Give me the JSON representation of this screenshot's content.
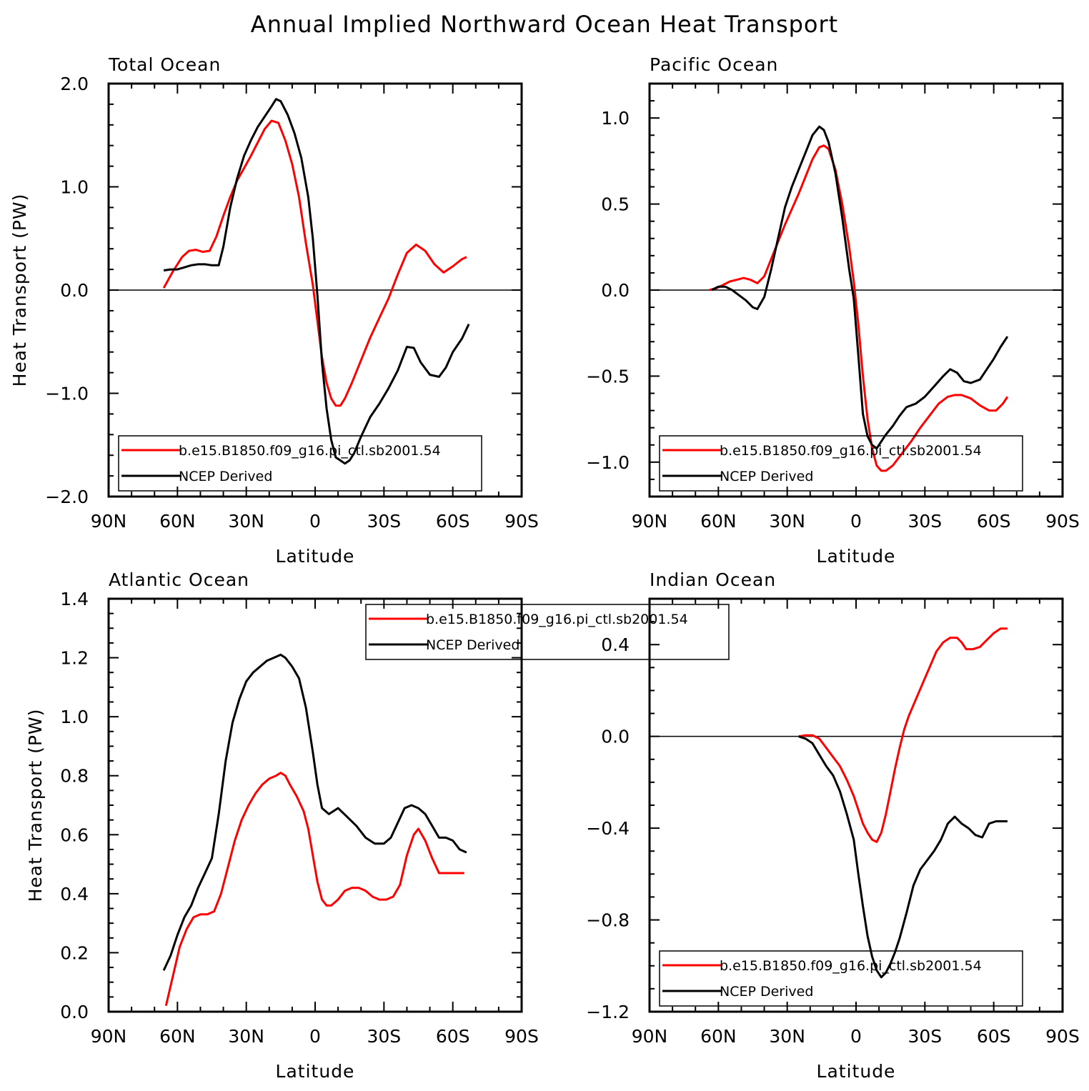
{
  "title": "Annual Implied Northward Ocean Heat Transport",
  "colors": {
    "model": "#ff0000",
    "obs": "#000000",
    "axis": "#000000"
  },
  "chart_data": [
    {
      "type": "line",
      "panel_title": "Total Ocean",
      "xlabel": "Latitude",
      "ylabel": "Heat Transport (PW)",
      "xlim": [
        90,
        -90
      ],
      "ylim": [
        -2.0,
        2.0
      ],
      "xticks": [
        90,
        60,
        30,
        0,
        -30,
        -60,
        -90
      ],
      "xtick_labels": [
        "90N",
        "60N",
        "30N",
        "0",
        "30S",
        "60S",
        "90S"
      ],
      "yticks": [
        -2.0,
        -1.0,
        0.0,
        1.0,
        2.0
      ],
      "ytick_labels": [
        "−2.0",
        "−1.0",
        "0.0",
        "1.0",
        "2.0"
      ],
      "zero_line": true,
      "legend_position": "lower-left",
      "series": [
        {
          "name": "b.e15.B1850.f09_g16.pi_ctl.sb2001.54",
          "color": "#ff0000",
          "x": [
            66,
            62,
            58,
            55,
            52,
            49,
            46,
            43,
            40,
            37,
            34,
            31,
            28,
            25,
            22,
            19,
            16,
            13,
            10,
            7,
            4,
            1,
            -1,
            -3,
            -5,
            -7,
            -9,
            -11,
            -13,
            -16,
            -20,
            -24,
            -28,
            -32,
            -36,
            -40,
            -44,
            -48,
            -52,
            -56,
            -60,
            -64,
            -66
          ],
          "y": [
            0.02,
            0.18,
            0.32,
            0.38,
            0.39,
            0.37,
            0.38,
            0.52,
            0.72,
            0.9,
            1.06,
            1.18,
            1.3,
            1.43,
            1.56,
            1.64,
            1.62,
            1.45,
            1.22,
            0.9,
            0.45,
            0.05,
            -0.3,
            -0.65,
            -0.9,
            -1.05,
            -1.12,
            -1.12,
            -1.05,
            -0.9,
            -0.68,
            -0.46,
            -0.27,
            -0.08,
            0.15,
            0.36,
            0.44,
            0.38,
            0.25,
            0.17,
            0.23,
            0.3,
            0.32
          ]
        },
        {
          "name": "NCEP Derived",
          "color": "#000000",
          "x": [
            66,
            63,
            60,
            57,
            54,
            51,
            48,
            45,
            42,
            40,
            37,
            34,
            31,
            28,
            25,
            22,
            19,
            17,
            15,
            12,
            9,
            6,
            3,
            1,
            -1,
            -3,
            -5,
            -7,
            -9,
            -11,
            -13,
            -15,
            -17,
            -20,
            -24,
            -28,
            -32,
            -36,
            -40,
            -43,
            -46,
            -50,
            -54,
            -57,
            -60,
            -64,
            -67
          ],
          "y": [
            0.19,
            0.2,
            0.2,
            0.22,
            0.24,
            0.25,
            0.25,
            0.24,
            0.24,
            0.42,
            0.8,
            1.08,
            1.3,
            1.45,
            1.58,
            1.68,
            1.78,
            1.85,
            1.83,
            1.7,
            1.52,
            1.28,
            0.9,
            0.5,
            -0.05,
            -0.7,
            -1.15,
            -1.45,
            -1.62,
            -1.65,
            -1.68,
            -1.65,
            -1.58,
            -1.42,
            -1.23,
            -1.1,
            -0.95,
            -0.78,
            -0.55,
            -0.56,
            -0.7,
            -0.82,
            -0.84,
            -0.75,
            -0.6,
            -0.47,
            -0.33
          ]
        }
      ]
    },
    {
      "type": "line",
      "panel_title": "Pacific Ocean",
      "xlabel": "Latitude",
      "ylabel": "",
      "xlim": [
        90,
        -90
      ],
      "ylim": [
        -1.2,
        1.2
      ],
      "xticks": [
        90,
        60,
        30,
        0,
        -30,
        -60,
        -90
      ],
      "xtick_labels": [
        "90N",
        "60N",
        "30N",
        "0",
        "30S",
        "60S",
        "90S"
      ],
      "yticks": [
        -1.0,
        -0.5,
        0.0,
        0.5,
        1.0
      ],
      "ytick_labels": [
        "−1.0",
        "−0.5",
        "0.0",
        "0.5",
        "1.0"
      ],
      "zero_line": true,
      "legend_position": "lower-left",
      "series": [
        {
          "name": "b.e15.B1850.f09_g16.pi_ctl.sb2001.54",
          "color": "#ff0000",
          "x": [
            64,
            61,
            58,
            55,
            52,
            49,
            46,
            43,
            40,
            37,
            34,
            31,
            28,
            25,
            22,
            19,
            16,
            14,
            12,
            9,
            6,
            3,
            1,
            -1,
            -3,
            -5,
            -7,
            -9,
            -11,
            -13,
            -16,
            -20,
            -24,
            -28,
            -32,
            -36,
            -40,
            -43,
            -46,
            -50,
            -54,
            -58,
            -61,
            -64,
            -66
          ],
          "y": [
            0.0,
            0.01,
            0.03,
            0.05,
            0.06,
            0.07,
            0.06,
            0.04,
            0.08,
            0.18,
            0.28,
            0.38,
            0.47,
            0.56,
            0.66,
            0.76,
            0.83,
            0.84,
            0.82,
            0.7,
            0.5,
            0.25,
            0.05,
            -0.2,
            -0.5,
            -0.75,
            -0.92,
            -1.02,
            -1.05,
            -1.05,
            -1.02,
            -0.95,
            -0.88,
            -0.8,
            -0.73,
            -0.66,
            -0.62,
            -0.61,
            -0.61,
            -0.63,
            -0.67,
            -0.7,
            -0.7,
            -0.66,
            -0.62
          ]
        },
        {
          "name": "NCEP Derived",
          "color": "#000000",
          "x": [
            63,
            60,
            57,
            54,
            51,
            48,
            45,
            43,
            40,
            37,
            34,
            31,
            28,
            25,
            22,
            19,
            16,
            14,
            12,
            9,
            6,
            3,
            1,
            -1,
            -3,
            -5,
            -7,
            -9,
            -11,
            -13,
            -16,
            -19,
            -22,
            -26,
            -30,
            -34,
            -38,
            -41,
            -44,
            -47,
            -50,
            -54,
            -57,
            -60,
            -63,
            -66
          ],
          "y": [
            0.0,
            0.02,
            0.02,
            0.0,
            -0.03,
            -0.06,
            -0.1,
            -0.11,
            -0.04,
            0.12,
            0.3,
            0.48,
            0.6,
            0.7,
            0.8,
            0.9,
            0.95,
            0.93,
            0.86,
            0.68,
            0.42,
            0.12,
            -0.05,
            -0.38,
            -0.72,
            -0.85,
            -0.9,
            -0.92,
            -0.88,
            -0.84,
            -0.79,
            -0.73,
            -0.68,
            -0.66,
            -0.62,
            -0.56,
            -0.5,
            -0.46,
            -0.48,
            -0.53,
            -0.54,
            -0.52,
            -0.46,
            -0.4,
            -0.33,
            -0.27
          ]
        }
      ]
    },
    {
      "type": "line",
      "panel_title": "Atlantic Ocean",
      "xlabel": "Latitude",
      "ylabel": "Heat Transport (PW)",
      "xlim": [
        90,
        -90
      ],
      "ylim": [
        0.0,
        1.4
      ],
      "xticks": [
        90,
        60,
        30,
        0,
        -30,
        -60,
        -90
      ],
      "xtick_labels": [
        "90N",
        "60N",
        "30N",
        "0",
        "30S",
        "60S",
        "90S"
      ],
      "yticks": [
        0.0,
        0.2,
        0.4,
        0.6,
        0.8,
        1.0,
        1.2,
        1.4
      ],
      "ytick_labels": [
        "0.0",
        "0.2",
        "0.4",
        "0.6",
        "0.8",
        "1.0",
        "1.2",
        "1.4"
      ],
      "zero_line": false,
      "legend_position": "top-center",
      "series": [
        {
          "name": "b.e15.B1850.f09_g16.pi_ctl.sb2001.54",
          "color": "#ff0000",
          "x": [
            65,
            62,
            59,
            56,
            53,
            50,
            47,
            44,
            41,
            38,
            35,
            32,
            29,
            26,
            23,
            20,
            17,
            15,
            13,
            11,
            8,
            5,
            3,
            1,
            -1,
            -3,
            -5,
            -7,
            -10,
            -13,
            -16,
            -19,
            -22,
            -25,
            -28,
            -31,
            -34,
            -37,
            -40,
            -43,
            -45,
            -48,
            -51,
            -54,
            -57,
            -60,
            -63,
            -65
          ],
          "y": [
            0.02,
            0.12,
            0.22,
            0.28,
            0.32,
            0.33,
            0.33,
            0.34,
            0.4,
            0.49,
            0.58,
            0.65,
            0.7,
            0.74,
            0.77,
            0.79,
            0.8,
            0.81,
            0.8,
            0.77,
            0.73,
            0.68,
            0.62,
            0.53,
            0.44,
            0.38,
            0.36,
            0.36,
            0.38,
            0.41,
            0.42,
            0.42,
            0.41,
            0.39,
            0.38,
            0.38,
            0.39,
            0.43,
            0.53,
            0.6,
            0.62,
            0.58,
            0.52,
            0.47,
            0.47,
            0.47,
            0.47,
            0.47
          ]
        },
        {
          "name": "NCEP Derived",
          "color": "#000000",
          "x": [
            66,
            63,
            60,
            57,
            54,
            51,
            48,
            45,
            42,
            39,
            36,
            33,
            30,
            27,
            24,
            21,
            18,
            15,
            13,
            10,
            7,
            4,
            1,
            -1,
            -3,
            -6,
            -10,
            -14,
            -18,
            -22,
            -26,
            -30,
            -33,
            -36,
            -39,
            -42,
            -45,
            -48,
            -51,
            -54,
            -57,
            -60,
            -63,
            -66
          ],
          "y": [
            0.14,
            0.19,
            0.26,
            0.32,
            0.36,
            0.42,
            0.47,
            0.52,
            0.67,
            0.85,
            0.98,
            1.06,
            1.12,
            1.15,
            1.17,
            1.19,
            1.2,
            1.21,
            1.2,
            1.17,
            1.13,
            1.03,
            0.88,
            0.77,
            0.69,
            0.67,
            0.69,
            0.66,
            0.63,
            0.59,
            0.57,
            0.57,
            0.59,
            0.64,
            0.69,
            0.7,
            0.69,
            0.67,
            0.63,
            0.59,
            0.59,
            0.58,
            0.55,
            0.54
          ]
        }
      ]
    },
    {
      "type": "line",
      "panel_title": "Indian Ocean",
      "xlabel": "Latitude",
      "ylabel": "",
      "xlim": [
        90,
        -90
      ],
      "ylim": [
        -1.2,
        0.6
      ],
      "xticks": [
        90,
        60,
        30,
        0,
        -30,
        -60,
        -90
      ],
      "xtick_labels": [
        "90N",
        "60N",
        "30N",
        "0",
        "30S",
        "60S",
        "90S"
      ],
      "yticks": [
        -1.2,
        -0.8,
        -0.4,
        0.0,
        0.4
      ],
      "ytick_labels": [
        "−1.2",
        "−0.8",
        "−0.4",
        "0.0",
        "0.4"
      ],
      "zero_line": true,
      "legend_position": "lower-left",
      "series": [
        {
          "name": "b.e15.B1850.f09_g16.pi_ctl.sb2001.54",
          "color": "#ff0000",
          "x": [
            25,
            22,
            19,
            16,
            13,
            10,
            7,
            4,
            1,
            -1,
            -3,
            -5,
            -7,
            -9,
            -11,
            -13,
            -15,
            -17,
            -19,
            -21,
            -23,
            -26,
            -29,
            -32,
            -35,
            -38,
            -41,
            -44,
            -46,
            -48,
            -51,
            -54,
            -57,
            -60,
            -63,
            -66
          ],
          "y": [
            0.0,
            0.005,
            0.005,
            -0.01,
            -0.05,
            -0.09,
            -0.13,
            -0.19,
            -0.26,
            -0.32,
            -0.38,
            -0.42,
            -0.45,
            -0.46,
            -0.42,
            -0.34,
            -0.24,
            -0.14,
            -0.05,
            0.03,
            0.09,
            0.16,
            0.23,
            0.3,
            0.37,
            0.41,
            0.43,
            0.43,
            0.41,
            0.38,
            0.38,
            0.39,
            0.42,
            0.45,
            0.47,
            0.47
          ]
        },
        {
          "name": "NCEP Derived",
          "color": "#000000",
          "x": [
            25,
            22,
            19,
            16,
            13,
            10,
            7,
            4,
            1,
            -1,
            -3,
            -5,
            -7,
            -9,
            -11,
            -13,
            -15,
            -17,
            -19,
            -22,
            -25,
            -28,
            -31,
            -34,
            -37,
            -40,
            -43,
            -46,
            -49,
            -52,
            -55,
            -58,
            -61,
            -64,
            -66
          ],
          "y": [
            0.0,
            -0.01,
            -0.03,
            -0.08,
            -0.13,
            -0.17,
            -0.24,
            -0.34,
            -0.45,
            -0.6,
            -0.74,
            -0.87,
            -0.96,
            -1.02,
            -1.05,
            -1.03,
            -0.99,
            -0.94,
            -0.88,
            -0.77,
            -0.65,
            -0.58,
            -0.54,
            -0.5,
            -0.45,
            -0.38,
            -0.35,
            -0.38,
            -0.4,
            -0.43,
            -0.44,
            -0.38,
            -0.37,
            -0.37,
            -0.37
          ]
        }
      ]
    }
  ]
}
